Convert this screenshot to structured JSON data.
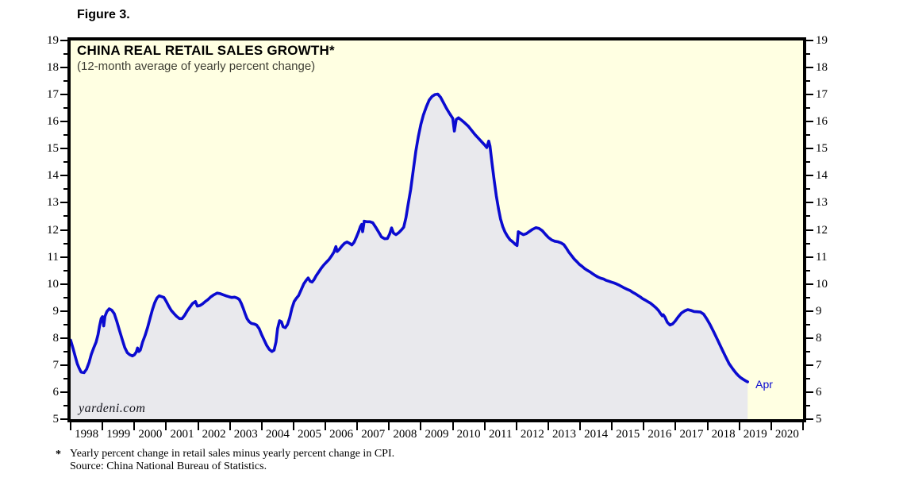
{
  "figure_label": "Figure 3.",
  "chart": {
    "title": "CHINA REAL RETAIL SALES GROWTH*",
    "subtitle": "(12-month average of yearly percent change)",
    "watermark": "yardeni.com",
    "colors": {
      "line": "#0b0bd0",
      "area_fill": "#e9e9ed",
      "plot_background": "#ffffe2",
      "frame": "#000000",
      "end_label_text": "#0b0bd0"
    },
    "y_axis": {
      "labels": [
        "19",
        "18",
        "17",
        "16",
        "15",
        "14",
        "13",
        "12",
        "11",
        "10",
        "9",
        "8",
        "7",
        "6",
        "5"
      ],
      "min": 5,
      "max": 19,
      "major_step": 1,
      "minor_step": 0.5
    },
    "x_axis": {
      "year_labels": [
        "1998",
        "1999",
        "2000",
        "2001",
        "2002",
        "2003",
        "2004",
        "2005",
        "2006",
        "2007",
        "2008",
        "2009",
        "2010",
        "2011",
        "2012",
        "2013",
        "2014",
        "2015",
        "2016",
        "2017",
        "2018",
        "2019",
        "2020"
      ]
    }
  },
  "footnote": {
    "marker": "*",
    "line1": "Yearly percent change in retail sales minus yearly percent change in CPI.",
    "line2": "Source: China National Bureau of Statistics."
  },
  "chart_data": {
    "type": "area",
    "title": "CHINA REAL RETAIL SALES GROWTH*",
    "subtitle": "(12-month average of yearly percent change)",
    "x_unit": "decimal_year",
    "xlim": [
      1998,
      2021
    ],
    "ylim": [
      5,
      19
    ],
    "grid": false,
    "annotations": [
      {
        "text": "Apr",
        "x": 2019.26,
        "y": 6.38
      }
    ],
    "series": [
      {
        "name": "China real retail sales growth, 12-month average (%)",
        "points": [
          [
            1998.0,
            7.92
          ],
          [
            1998.08,
            7.6
          ],
          [
            1998.15,
            7.3
          ],
          [
            1998.21,
            7.05
          ],
          [
            1998.27,
            6.88
          ],
          [
            1998.33,
            6.74
          ],
          [
            1998.42,
            6.72
          ],
          [
            1998.5,
            6.85
          ],
          [
            1998.58,
            7.1
          ],
          [
            1998.65,
            7.4
          ],
          [
            1998.72,
            7.62
          ],
          [
            1998.8,
            7.85
          ],
          [
            1998.86,
            8.12
          ],
          [
            1998.91,
            8.45
          ],
          [
            1998.96,
            8.72
          ],
          [
            1999.0,
            8.79
          ],
          [
            1999.04,
            8.45
          ],
          [
            1999.08,
            8.8
          ],
          [
            1999.14,
            8.98
          ],
          [
            1999.21,
            9.08
          ],
          [
            1999.29,
            9.03
          ],
          [
            1999.37,
            8.9
          ],
          [
            1999.45,
            8.62
          ],
          [
            1999.53,
            8.3
          ],
          [
            1999.62,
            7.95
          ],
          [
            1999.7,
            7.65
          ],
          [
            1999.78,
            7.46
          ],
          [
            1999.86,
            7.38
          ],
          [
            1999.94,
            7.34
          ],
          [
            2000.0,
            7.38
          ],
          [
            2000.06,
            7.48
          ],
          [
            2000.1,
            7.63
          ],
          [
            2000.14,
            7.5
          ],
          [
            2000.19,
            7.56
          ],
          [
            2000.26,
            7.85
          ],
          [
            2000.34,
            8.1
          ],
          [
            2000.42,
            8.4
          ],
          [
            2000.5,
            8.75
          ],
          [
            2000.57,
            9.05
          ],
          [
            2000.64,
            9.3
          ],
          [
            2000.71,
            9.48
          ],
          [
            2000.78,
            9.56
          ],
          [
            2000.86,
            9.53
          ],
          [
            2000.93,
            9.5
          ],
          [
            2001.0,
            9.36
          ],
          [
            2001.08,
            9.18
          ],
          [
            2001.16,
            9.02
          ],
          [
            2001.25,
            8.9
          ],
          [
            2001.33,
            8.8
          ],
          [
            2001.42,
            8.72
          ],
          [
            2001.5,
            8.72
          ],
          [
            2001.58,
            8.84
          ],
          [
            2001.66,
            9.0
          ],
          [
            2001.75,
            9.15
          ],
          [
            2001.83,
            9.28
          ],
          [
            2001.92,
            9.35
          ],
          [
            2001.98,
            9.18
          ],
          [
            2002.06,
            9.2
          ],
          [
            2002.14,
            9.26
          ],
          [
            2002.22,
            9.34
          ],
          [
            2002.31,
            9.42
          ],
          [
            2002.4,
            9.52
          ],
          [
            2002.5,
            9.6
          ],
          [
            2002.6,
            9.66
          ],
          [
            2002.7,
            9.64
          ],
          [
            2002.79,
            9.6
          ],
          [
            2002.88,
            9.56
          ],
          [
            2002.97,
            9.53
          ],
          [
            2003.06,
            9.5
          ],
          [
            2003.15,
            9.51
          ],
          [
            2003.23,
            9.48
          ],
          [
            2003.3,
            9.42
          ],
          [
            2003.36,
            9.28
          ],
          [
            2003.42,
            9.1
          ],
          [
            2003.48,
            8.9
          ],
          [
            2003.54,
            8.72
          ],
          [
            2003.61,
            8.6
          ],
          [
            2003.68,
            8.54
          ],
          [
            2003.76,
            8.52
          ],
          [
            2003.84,
            8.48
          ],
          [
            2003.92,
            8.35
          ],
          [
            2004.0,
            8.12
          ],
          [
            2004.08,
            7.92
          ],
          [
            2004.16,
            7.72
          ],
          [
            2004.24,
            7.58
          ],
          [
            2004.32,
            7.5
          ],
          [
            2004.39,
            7.55
          ],
          [
            2004.45,
            7.85
          ],
          [
            2004.5,
            8.35
          ],
          [
            2004.56,
            8.64
          ],
          [
            2004.62,
            8.6
          ],
          [
            2004.67,
            8.42
          ],
          [
            2004.74,
            8.38
          ],
          [
            2004.81,
            8.5
          ],
          [
            2004.88,
            8.75
          ],
          [
            2004.95,
            9.1
          ],
          [
            2005.02,
            9.35
          ],
          [
            2005.09,
            9.47
          ],
          [
            2005.16,
            9.57
          ],
          [
            2005.24,
            9.78
          ],
          [
            2005.32,
            10.0
          ],
          [
            2005.4,
            10.14
          ],
          [
            2005.46,
            10.22
          ],
          [
            2005.52,
            10.1
          ],
          [
            2005.58,
            10.07
          ],
          [
            2005.64,
            10.15
          ],
          [
            2005.71,
            10.3
          ],
          [
            2005.79,
            10.44
          ],
          [
            2005.87,
            10.58
          ],
          [
            2005.95,
            10.7
          ],
          [
            2006.03,
            10.8
          ],
          [
            2006.11,
            10.9
          ],
          [
            2006.19,
            11.03
          ],
          [
            2006.27,
            11.18
          ],
          [
            2006.33,
            11.38
          ],
          [
            2006.37,
            11.2
          ],
          [
            2006.44,
            11.28
          ],
          [
            2006.52,
            11.4
          ],
          [
            2006.6,
            11.5
          ],
          [
            2006.68,
            11.55
          ],
          [
            2006.76,
            11.5
          ],
          [
            2006.83,
            11.44
          ],
          [
            2006.9,
            11.54
          ],
          [
            2006.97,
            11.72
          ],
          [
            2007.04,
            11.92
          ],
          [
            2007.1,
            12.12
          ],
          [
            2007.14,
            12.2
          ],
          [
            2007.17,
            11.93
          ],
          [
            2007.22,
            12.32
          ],
          [
            2007.3,
            12.3
          ],
          [
            2007.4,
            12.3
          ],
          [
            2007.49,
            12.26
          ],
          [
            2007.58,
            12.1
          ],
          [
            2007.67,
            11.92
          ],
          [
            2007.76,
            11.74
          ],
          [
            2007.86,
            11.67
          ],
          [
            2007.95,
            11.68
          ],
          [
            2008.02,
            11.85
          ],
          [
            2008.08,
            12.07
          ],
          [
            2008.14,
            11.88
          ],
          [
            2008.22,
            11.82
          ],
          [
            2008.31,
            11.9
          ],
          [
            2008.39,
            12.0
          ],
          [
            2008.46,
            12.1
          ],
          [
            2008.53,
            12.45
          ],
          [
            2008.6,
            12.95
          ],
          [
            2008.68,
            13.5
          ],
          [
            2008.76,
            14.2
          ],
          [
            2008.84,
            14.9
          ],
          [
            2008.92,
            15.45
          ],
          [
            2009.0,
            15.9
          ],
          [
            2009.08,
            16.25
          ],
          [
            2009.17,
            16.55
          ],
          [
            2009.26,
            16.8
          ],
          [
            2009.35,
            16.93
          ],
          [
            2009.44,
            17.0
          ],
          [
            2009.53,
            17.02
          ],
          [
            2009.62,
            16.9
          ],
          [
            2009.71,
            16.7
          ],
          [
            2009.8,
            16.5
          ],
          [
            2009.9,
            16.3
          ],
          [
            2010.0,
            16.12
          ],
          [
            2010.05,
            15.65
          ],
          [
            2010.11,
            16.08
          ],
          [
            2010.18,
            16.14
          ],
          [
            2010.28,
            16.05
          ],
          [
            2010.38,
            15.95
          ],
          [
            2010.49,
            15.83
          ],
          [
            2010.6,
            15.67
          ],
          [
            2010.7,
            15.52
          ],
          [
            2010.81,
            15.38
          ],
          [
            2010.92,
            15.24
          ],
          [
            2011.0,
            15.14
          ],
          [
            2011.07,
            15.04
          ],
          [
            2011.13,
            15.28
          ],
          [
            2011.17,
            15.1
          ],
          [
            2011.23,
            14.5
          ],
          [
            2011.3,
            13.85
          ],
          [
            2011.37,
            13.25
          ],
          [
            2011.44,
            12.75
          ],
          [
            2011.5,
            12.4
          ],
          [
            2011.57,
            12.12
          ],
          [
            2011.64,
            11.92
          ],
          [
            2011.72,
            11.76
          ],
          [
            2011.8,
            11.63
          ],
          [
            2011.88,
            11.56
          ],
          [
            2011.96,
            11.47
          ],
          [
            2012.02,
            11.42
          ],
          [
            2012.06,
            11.93
          ],
          [
            2012.14,
            11.87
          ],
          [
            2012.22,
            11.82
          ],
          [
            2012.31,
            11.86
          ],
          [
            2012.41,
            11.94
          ],
          [
            2012.51,
            12.02
          ],
          [
            2012.61,
            12.08
          ],
          [
            2012.71,
            12.05
          ],
          [
            2012.81,
            11.97
          ],
          [
            2012.9,
            11.85
          ],
          [
            2013.0,
            11.72
          ],
          [
            2013.1,
            11.63
          ],
          [
            2013.2,
            11.58
          ],
          [
            2013.3,
            11.56
          ],
          [
            2013.4,
            11.52
          ],
          [
            2013.49,
            11.45
          ],
          [
            2013.57,
            11.32
          ],
          [
            2013.65,
            11.17
          ],
          [
            2013.74,
            11.03
          ],
          [
            2013.82,
            10.91
          ],
          [
            2013.9,
            10.82
          ],
          [
            2013.98,
            10.72
          ],
          [
            2014.06,
            10.65
          ],
          [
            2014.14,
            10.57
          ],
          [
            2014.23,
            10.5
          ],
          [
            2014.32,
            10.44
          ],
          [
            2014.4,
            10.37
          ],
          [
            2014.49,
            10.3
          ],
          [
            2014.57,
            10.25
          ],
          [
            2014.65,
            10.21
          ],
          [
            2014.74,
            10.18
          ],
          [
            2014.82,
            10.13
          ],
          [
            2014.9,
            10.1
          ],
          [
            2014.98,
            10.07
          ],
          [
            2015.06,
            10.04
          ],
          [
            2015.14,
            10.0
          ],
          [
            2015.23,
            9.95
          ],
          [
            2015.31,
            9.9
          ],
          [
            2015.39,
            9.85
          ],
          [
            2015.48,
            9.8
          ],
          [
            2015.56,
            9.76
          ],
          [
            2015.64,
            9.7
          ],
          [
            2015.73,
            9.64
          ],
          [
            2015.81,
            9.58
          ],
          [
            2015.89,
            9.52
          ],
          [
            2015.97,
            9.45
          ],
          [
            2016.05,
            9.4
          ],
          [
            2016.13,
            9.34
          ],
          [
            2016.22,
            9.28
          ],
          [
            2016.3,
            9.2
          ],
          [
            2016.38,
            9.12
          ],
          [
            2016.46,
            9.02
          ],
          [
            2016.53,
            8.9
          ],
          [
            2016.58,
            8.82
          ],
          [
            2016.61,
            8.86
          ],
          [
            2016.66,
            8.78
          ],
          [
            2016.74,
            8.58
          ],
          [
            2016.82,
            8.48
          ],
          [
            2016.9,
            8.52
          ],
          [
            2016.98,
            8.62
          ],
          [
            2017.08,
            8.78
          ],
          [
            2017.18,
            8.92
          ],
          [
            2017.28,
            9.0
          ],
          [
            2017.38,
            9.05
          ],
          [
            2017.48,
            9.02
          ],
          [
            2017.58,
            8.98
          ],
          [
            2017.68,
            8.97
          ],
          [
            2017.78,
            8.96
          ],
          [
            2017.88,
            8.88
          ],
          [
            2017.98,
            8.7
          ],
          [
            2018.08,
            8.5
          ],
          [
            2018.2,
            8.22
          ],
          [
            2018.32,
            7.92
          ],
          [
            2018.44,
            7.62
          ],
          [
            2018.56,
            7.33
          ],
          [
            2018.68,
            7.05
          ],
          [
            2018.8,
            6.85
          ],
          [
            2018.9,
            6.7
          ],
          [
            2018.98,
            6.6
          ],
          [
            2019.06,
            6.52
          ],
          [
            2019.14,
            6.46
          ],
          [
            2019.21,
            6.41
          ],
          [
            2019.26,
            6.38
          ]
        ]
      }
    ]
  }
}
